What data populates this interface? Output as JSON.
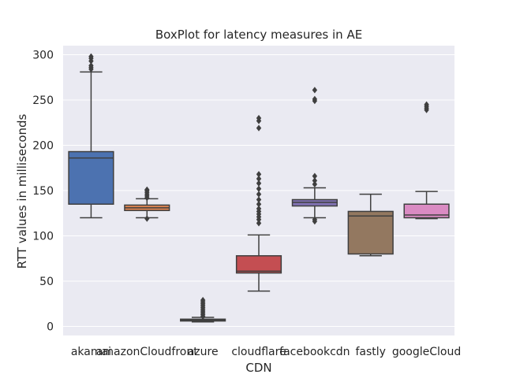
{
  "chart_data": {
    "type": "box",
    "title": "BoxPlot for latency measures in AE",
    "xlabel": "CDN",
    "ylabel": "RTT values in milliseconds",
    "ylim": [
      -10,
      310
    ],
    "yticks": [
      0,
      50,
      100,
      150,
      200,
      250,
      300
    ],
    "grid": true,
    "categories": [
      "akamai",
      "amazonCloudfront",
      "azure",
      "cloudflare",
      "facebookcdn",
      "fastly",
      "googleCloud"
    ],
    "boxes": [
      {
        "category": "akamai",
        "whisker_low": 120,
        "q1": 135,
        "median": 186,
        "q3": 193,
        "whisker_high": 281,
        "outliers": [
          284,
          286,
          288,
          293,
          296,
          298
        ],
        "color": "#4c72b0"
      },
      {
        "category": "amazonCloudfront",
        "whisker_low": 120,
        "q1": 128,
        "median": 131,
        "q3": 134,
        "whisker_high": 141,
        "outliers": [
          119,
          142,
          144,
          146,
          148,
          150,
          151
        ],
        "color": "#dd8452"
      },
      {
        "category": "azure",
        "whisker_low": 5,
        "q1": 6,
        "median": 7,
        "q3": 8,
        "whisker_high": 10,
        "outliers": [
          11,
          13,
          15,
          17,
          19,
          21,
          23,
          25,
          27,
          29
        ],
        "color": "#55a868"
      },
      {
        "category": "cloudflare",
        "whisker_low": 39,
        "q1": 59,
        "median": 61,
        "q3": 78,
        "whisker_high": 101,
        "outliers": [
          114,
          118,
          121,
          124,
          127,
          130,
          135,
          140,
          146,
          152,
          158,
          163,
          168,
          219,
          227,
          230
        ],
        "color": "#c44e52"
      },
      {
        "category": "facebookcdn",
        "whisker_low": 120,
        "q1": 133,
        "median": 137,
        "q3": 140,
        "whisker_high": 153,
        "outliers": [
          116,
          118,
          157,
          161,
          166,
          249,
          251,
          261
        ],
        "color": "#8172b3"
      },
      {
        "category": "fastly",
        "whisker_low": 78,
        "q1": 80,
        "median": 122,
        "q3": 127,
        "whisker_high": 146,
        "outliers": [],
        "color": "#937860"
      },
      {
        "category": "googleCloud",
        "whisker_low": 119,
        "q1": 120,
        "median": 123,
        "q3": 135,
        "whisker_high": 149,
        "outliers": [
          239,
          241,
          243,
          245
        ],
        "color": "#da8bc3"
      }
    ]
  }
}
